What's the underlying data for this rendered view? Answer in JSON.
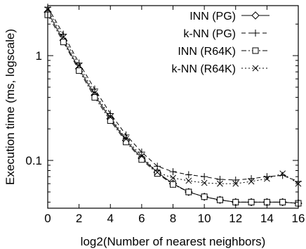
{
  "chart_data": {
    "type": "line",
    "xlabel": "log2(Number of nearest neighbors)",
    "ylabel": "Execution time (ms, logscale)",
    "xlim": [
      0,
      16
    ],
    "ylim": [
      0.035,
      3
    ],
    "y_scale": "log",
    "grid": false,
    "legend_position": "top-right",
    "x_ticks": [
      0,
      2,
      4,
      6,
      8,
      10,
      12,
      14,
      16
    ],
    "y_ticks": [
      {
        "value": 1,
        "label": "1"
      },
      {
        "value": 0.1,
        "label": "0.1"
      }
    ],
    "x": [
      0,
      1,
      2,
      3,
      4,
      5,
      6,
      7,
      8,
      9,
      10,
      11,
      12,
      13,
      14,
      15,
      16
    ],
    "series": [
      {
        "name": "INN (PG)",
        "marker": "diamond",
        "dash": "solid",
        "values": [
          2.6,
          1.4,
          0.75,
          0.42,
          0.25,
          0.155,
          0.105,
          0.077,
          0.06,
          0.05,
          0.045,
          0.042,
          0.04,
          0.04,
          0.04,
          0.04,
          0.039
        ]
      },
      {
        "name": "k-NN (PG)",
        "marker": "plus",
        "dash": "dashed",
        "values": [
          2.9,
          1.6,
          0.85,
          0.48,
          0.28,
          0.175,
          0.12,
          0.088,
          0.078,
          0.073,
          0.07,
          0.066,
          0.065,
          0.067,
          0.07,
          0.072,
          0.063
        ]
      },
      {
        "name": "INN (R64K)",
        "marker": "square",
        "dash": "dash-dot",
        "values": [
          2.45,
          1.35,
          0.72,
          0.4,
          0.24,
          0.15,
          0.102,
          0.075,
          0.059,
          0.05,
          0.045,
          0.042,
          0.04,
          0.04,
          0.04,
          0.04,
          0.039
        ]
      },
      {
        "name": "k-NN (R64K)",
        "marker": "cross",
        "dash": "dotted",
        "values": [
          2.75,
          1.5,
          0.8,
          0.44,
          0.26,
          0.16,
          0.11,
          0.077,
          0.068,
          0.064,
          0.061,
          0.06,
          0.06,
          0.063,
          0.067,
          0.075,
          0.06
        ]
      }
    ]
  }
}
